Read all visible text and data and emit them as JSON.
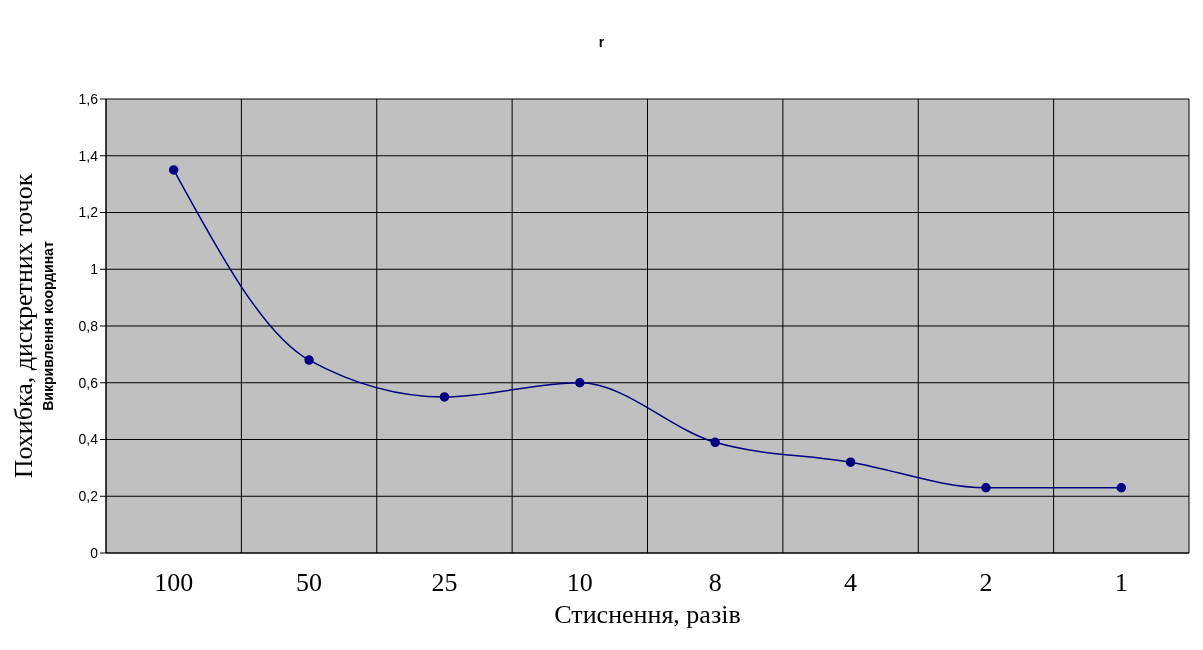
{
  "chart_data": {
    "type": "line",
    "title": "r",
    "xlabel": "Стиснення, разів",
    "ylabel": "Похибка, дискретних точок",
    "annotations": [
      "Викривлення координат"
    ],
    "categories": [
      "100",
      "50",
      "25",
      "10",
      "8",
      "4",
      "2",
      "1"
    ],
    "series": [
      {
        "color": "#000080",
        "values": [
          1.35,
          0.68,
          0.55,
          0.6,
          0.39,
          0.32,
          0.23,
          0.23
        ]
      }
    ],
    "ylim": [
      0,
      1.6
    ],
    "yticks": [
      0,
      {
        "value": 0.2,
        "label": "0,2"
      },
      {
        "value": 0.4,
        "label": "0,4"
      },
      {
        "value": 0.6,
        "label": "0,6"
      },
      {
        "value": 0.8,
        "label": "0,8"
      },
      1,
      {
        "value": 1.2,
        "label": "1,2"
      },
      {
        "value": 1.4,
        "label": "1,4"
      },
      {
        "value": 1.6,
        "label": "1,6"
      }
    ],
    "grid": true,
    "marker": "circle"
  }
}
